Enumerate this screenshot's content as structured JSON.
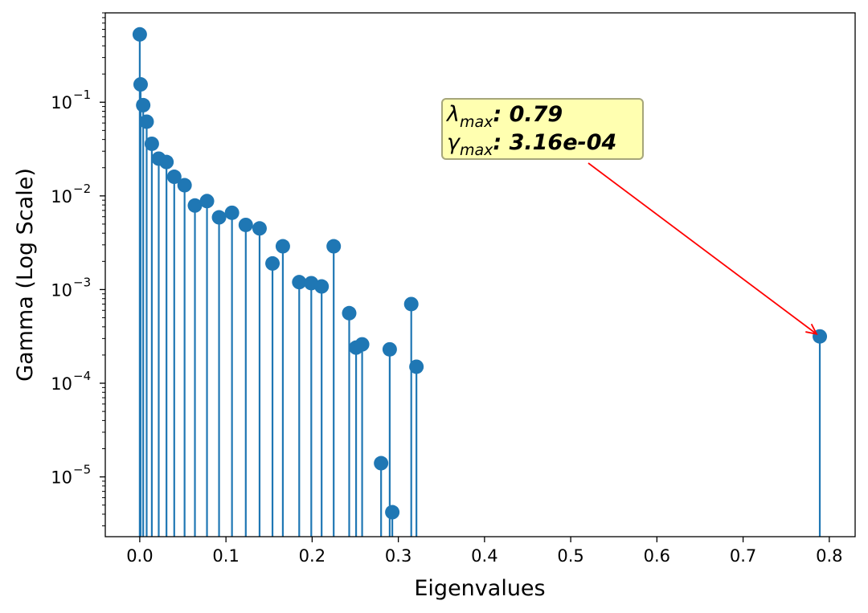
{
  "chart_data": {
    "type": "stem",
    "title": "",
    "xlabel": "Eigenvalues",
    "ylabel": "Gamma (Log Scale)",
    "yscale": "log",
    "xlim": [
      -0.04,
      0.83
    ],
    "ylim": [
      2.3e-06,
      0.9
    ],
    "x_ticks": [
      0.0,
      0.1,
      0.2,
      0.3,
      0.4,
      0.5,
      0.6,
      0.7,
      0.8
    ],
    "x_tick_labels": [
      "0.0",
      "0.1",
      "0.2",
      "0.3",
      "0.4",
      "0.5",
      "0.6",
      "0.7",
      "0.8"
    ],
    "y_ticks": [
      1e-05,
      0.0001,
      0.001,
      0.01,
      0.1
    ],
    "y_tick_labels": [
      {
        "base": "10",
        "exp": "−5"
      },
      {
        "base": "10",
        "exp": "−4"
      },
      {
        "base": "10",
        "exp": "−3"
      },
      {
        "base": "10",
        "exp": "−2"
      },
      {
        "base": "10",
        "exp": "−1"
      }
    ],
    "series": [
      {
        "name": "gamma",
        "color": "#1f77b4",
        "points": [
          {
            "x": 0.0,
            "y": 0.53
          },
          {
            "x": 0.001,
            "y": 0.155
          },
          {
            "x": 0.004,
            "y": 0.093
          },
          {
            "x": 0.008,
            "y": 0.062
          },
          {
            "x": 0.014,
            "y": 0.036
          },
          {
            "x": 0.022,
            "y": 0.025
          },
          {
            "x": 0.031,
            "y": 0.023
          },
          {
            "x": 0.04,
            "y": 0.016
          },
          {
            "x": 0.052,
            "y": 0.013
          },
          {
            "x": 0.064,
            "y": 0.0079
          },
          {
            "x": 0.078,
            "y": 0.0088
          },
          {
            "x": 0.092,
            "y": 0.0059
          },
          {
            "x": 0.107,
            "y": 0.0066
          },
          {
            "x": 0.123,
            "y": 0.0049
          },
          {
            "x": 0.139,
            "y": 0.0045
          },
          {
            "x": 0.154,
            "y": 0.0019
          },
          {
            "x": 0.166,
            "y": 0.0029
          },
          {
            "x": 0.185,
            "y": 0.0012
          },
          {
            "x": 0.199,
            "y": 0.00117
          },
          {
            "x": 0.211,
            "y": 0.00108
          },
          {
            "x": 0.225,
            "y": 0.0029
          },
          {
            "x": 0.243,
            "y": 0.00056
          },
          {
            "x": 0.251,
            "y": 0.00024
          },
          {
            "x": 0.258,
            "y": 0.00026
          },
          {
            "x": 0.28,
            "y": 1.4e-05
          },
          {
            "x": 0.29,
            "y": 0.00023
          },
          {
            "x": 0.293,
            "y": 4.2e-06
          },
          {
            "x": 0.315,
            "y": 0.0007
          },
          {
            "x": 0.321,
            "y": 0.00015
          },
          {
            "x": 0.789,
            "y": 0.000316
          }
        ]
      }
    ],
    "annotation": {
      "line1_symbol": "λ",
      "line1_sub": "max",
      "line1_value": ": 0.79",
      "line2_symbol": "γ",
      "line2_sub": "max",
      "line2_value": ": 3.16e-04",
      "box_color": "#ffffb0",
      "border_color": "#a6a67a",
      "arrow_color": "#ff0000",
      "target": {
        "x": 0.789,
        "y": 0.000316
      },
      "text_anchor": {
        "x": 0.35,
        "y": 0.11
      }
    }
  }
}
